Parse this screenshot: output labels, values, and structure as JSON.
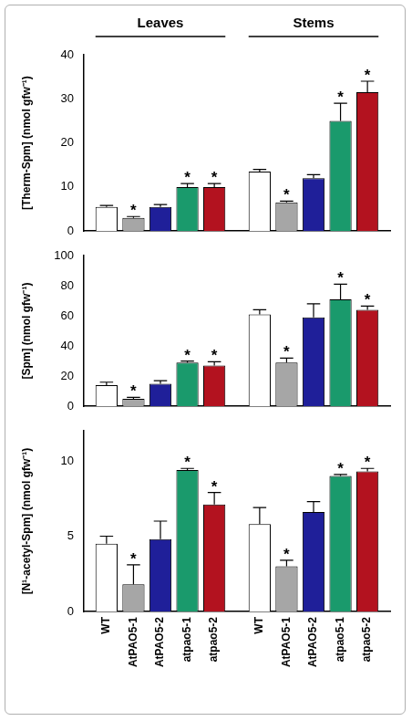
{
  "chart_data": [
    {
      "type": "bar",
      "y_label": "[Therm-Spm] (nmol gfw⁻¹)",
      "categories": [
        "Leaves",
        "Stems"
      ],
      "ylim": [
        0,
        40
      ],
      "yticks": [
        0,
        10,
        20,
        30,
        40
      ],
      "grid": false,
      "series": [
        {
          "color": "#ffffff",
          "values": [
            5.5,
            13.5
          ],
          "errors": [
            0.3,
            0.5
          ],
          "asterisks": [
            null,
            null
          ]
        },
        {
          "color": "#a6a6a6",
          "values": [
            3.0,
            6.5
          ],
          "errors": [
            0.3,
            0.3
          ],
          "asterisks": [
            "*",
            "*"
          ]
        },
        {
          "color": "#1f1f99",
          "values": [
            5.5,
            12.0
          ],
          "errors": [
            0.5,
            0.8
          ],
          "asterisks": [
            null,
            null
          ]
        },
        {
          "color": "#1a9a6c",
          "values": [
            10.0,
            25.0
          ],
          "errors": [
            0.8,
            4.0
          ],
          "asterisks": [
            "*",
            "*"
          ]
        },
        {
          "color": "#b3121f",
          "values": [
            10.0,
            31.5
          ],
          "errors": [
            0.8,
            2.5
          ],
          "asterisks": [
            "*",
            "*"
          ]
        }
      ]
    },
    {
      "type": "bar",
      "y_label": "[Spm] (nmol gfw⁻¹)",
      "ylim": [
        0,
        100
      ],
      "yticks": [
        0,
        20,
        40,
        60,
        80,
        100
      ],
      "grid": false,
      "series": [
        {
          "color": "#ffffff",
          "values": [
            14,
            61
          ],
          "errors": [
            2,
            3
          ],
          "asterisks": [
            null,
            null
          ]
        },
        {
          "color": "#a6a6a6",
          "values": [
            5,
            29
          ],
          "errors": [
            1,
            3
          ],
          "asterisks": [
            "*",
            "*"
          ]
        },
        {
          "color": "#1f1f99",
          "values": [
            15,
            59
          ],
          "errors": [
            2,
            9
          ],
          "asterisks": [
            null,
            null
          ]
        },
        {
          "color": "#1a9a6c",
          "values": [
            29,
            71
          ],
          "errors": [
            1,
            10
          ],
          "asterisks": [
            "*",
            "*"
          ]
        },
        {
          "color": "#b3121f",
          "values": [
            27,
            64
          ],
          "errors": [
            2.5,
            2.5
          ],
          "asterisks": [
            "*",
            "*"
          ]
        }
      ]
    },
    {
      "type": "bar",
      "y_label": "[N¹-acetyl-Spm] (nmol gfw⁻¹)",
      "ylim": [
        0,
        12
      ],
      "yticks": [
        0,
        5,
        10
      ],
      "grid": false,
      "series": [
        {
          "name": "WT",
          "color": "#ffffff",
          "values": [
            4.5,
            5.8
          ],
          "errors": [
            0.5,
            1.1
          ],
          "asterisks": [
            null,
            null
          ]
        },
        {
          "name": "AtPAO5-1",
          "color": "#a6a6a6",
          "values": [
            1.8,
            3.0
          ],
          "errors": [
            1.3,
            0.4
          ],
          "asterisks": [
            "*",
            "*"
          ]
        },
        {
          "name": "AtPAO5-2",
          "color": "#1f1f99",
          "values": [
            4.8,
            6.6
          ],
          "errors": [
            1.2,
            0.7
          ],
          "asterisks": [
            null,
            null
          ]
        },
        {
          "name": "atpao5-1",
          "color": "#1a9a6c",
          "values": [
            9.4,
            9.0
          ],
          "errors": [
            0.1,
            0.1
          ],
          "asterisks": [
            "*",
            "*"
          ]
        },
        {
          "name": "atpao5-2",
          "color": "#b3121f",
          "values": [
            7.1,
            9.3
          ],
          "errors": [
            0.8,
            0.2
          ],
          "asterisks": [
            "*",
            "*"
          ]
        }
      ]
    }
  ]
}
